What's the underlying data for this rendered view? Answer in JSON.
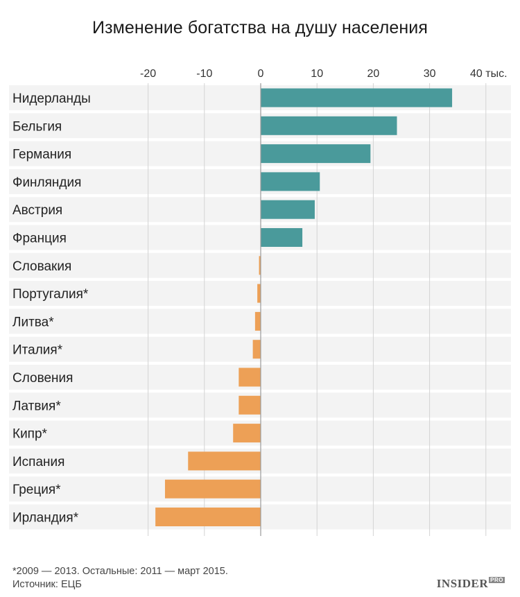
{
  "chart_data": {
    "type": "bar",
    "orientation": "horizontal",
    "title": "Изменение богатства на душу населения",
    "xlabel": "",
    "ylabel": "",
    "xlim": [
      -20,
      40
    ],
    "ticks": [
      -20,
      -10,
      0,
      10,
      20,
      30,
      40
    ],
    "tick_labels": [
      "-20",
      "-10",
      "0",
      "10",
      "20",
      "30",
      "40 тыс."
    ],
    "grid": true,
    "categories": [
      "Нидерланды",
      "Бельгия",
      "Германия",
      "Финляндия",
      "Австрия",
      "Франция",
      "Словакия",
      "Португалия*",
      "Литва*",
      "Италия*",
      "Словения",
      "Латвия*",
      "Кипр*",
      "Испания",
      "Греция*",
      "Ирландия*"
    ],
    "values": [
      34,
      24.2,
      19.5,
      10.5,
      9.6,
      7.4,
      -0.3,
      -0.6,
      -1,
      -1.4,
      -3.9,
      -3.9,
      -4.9,
      -12.9,
      -17,
      -18.7
    ],
    "colors": {
      "positive": "#4a9a9b",
      "negative": "#eda056",
      "row_band": "#f3f3f3",
      "grid": "#d3d3d3"
    }
  },
  "footnote": "*2009 — 2013. Остальные: 2011 — март 2015.",
  "source": "Источник: ЕЦБ",
  "logo": {
    "text": "INSIDER",
    "badge": "PRO"
  }
}
